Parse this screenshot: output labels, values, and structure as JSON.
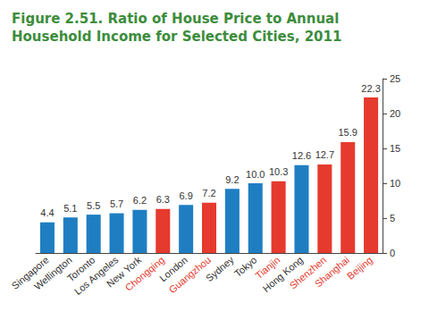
{
  "chart_data": {
    "type": "bar",
    "title": "Figure 2.51. Ratio of House Price to Annual Household Income for Selected Cities, 2011",
    "categories": [
      "Singapore",
      "Wellington",
      "Toronto",
      "Los Angeles",
      "New York",
      "Chongqing",
      "London",
      "Guangzhou",
      "Sydney",
      "Tokyo",
      "Tianjin",
      "Hong Kong",
      "Shenzhen",
      "Shanghai",
      "Beijing"
    ],
    "values": [
      4.4,
      5.1,
      5.5,
      5.7,
      6.2,
      6.3,
      6.9,
      7.2,
      9.2,
      10.0,
      10.3,
      12.6,
      12.7,
      15.9,
      22.3
    ],
    "value_labels": [
      "4.4",
      "5.1",
      "5.5",
      "5.7",
      "6.2",
      "6.3",
      "6.9",
      "7.2",
      "9.2",
      "10.0",
      "10.3",
      "12.6",
      "12.7",
      "15.9",
      "22.3"
    ],
    "colors": [
      "#1f7ec2",
      "#1f7ec2",
      "#1f7ec2",
      "#1f7ec2",
      "#1f7ec2",
      "#e63a2e",
      "#1f7ec2",
      "#e63a2e",
      "#1f7ec2",
      "#1f7ec2",
      "#e63a2e",
      "#1f7ec2",
      "#e63a2e",
      "#e63a2e",
      "#e63a2e"
    ],
    "ylim": [
      0,
      25
    ],
    "yticks": [
      0,
      5,
      10,
      15,
      20,
      25
    ],
    "grid": false,
    "data_labels": true
  }
}
